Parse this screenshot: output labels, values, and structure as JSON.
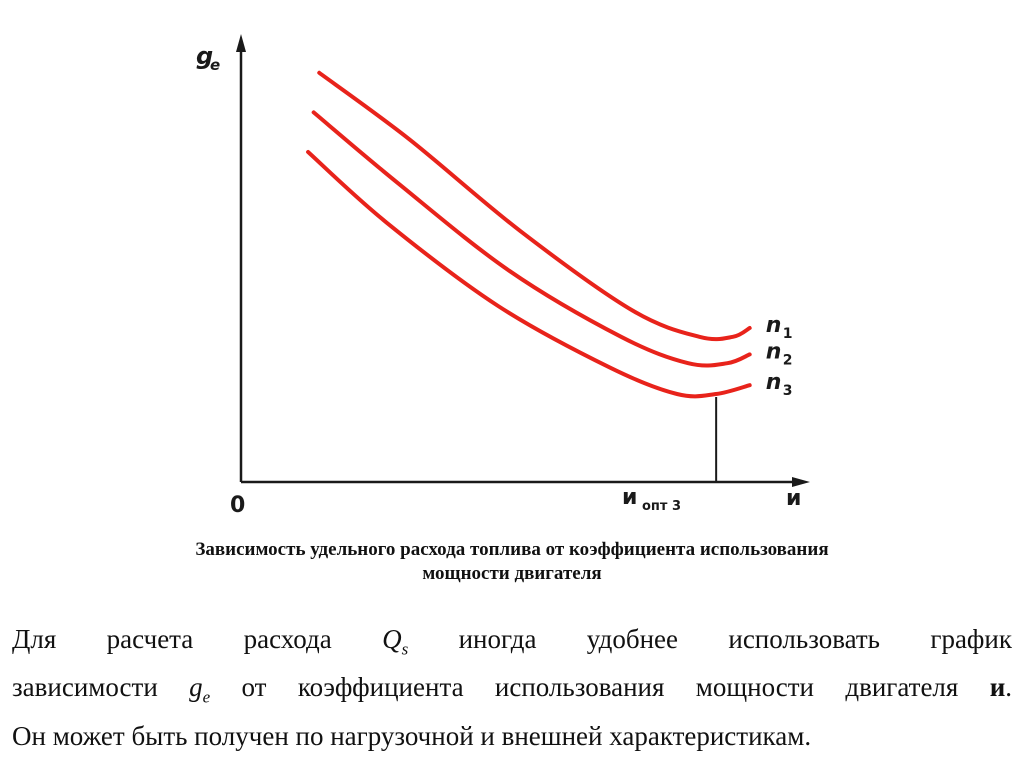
{
  "chart_data": {
    "type": "line",
    "y_axis_label": "g",
    "y_axis_label_sub": "e",
    "x_axis_label": "и",
    "origin_label": "0",
    "x_marker_label": "и",
    "x_marker_label_sub": "опт 3",
    "series": [
      {
        "name": "n1",
        "label_main": "n",
        "label_sub": "1",
        "x": [
          0.14,
          0.3,
          0.5,
          0.7,
          0.82,
          0.88,
          0.91
        ],
        "y": [
          0.93,
          0.78,
          0.57,
          0.39,
          0.33,
          0.33,
          0.35
        ]
      },
      {
        "name": "n2",
        "label_main": "n",
        "label_sub": "2",
        "x": [
          0.13,
          0.28,
          0.48,
          0.68,
          0.8,
          0.87,
          0.91
        ],
        "y": [
          0.84,
          0.68,
          0.48,
          0.33,
          0.27,
          0.27,
          0.29
        ]
      },
      {
        "name": "n3",
        "label_main": "n",
        "label_sub": "3",
        "x": [
          0.12,
          0.26,
          0.46,
          0.66,
          0.78,
          0.85,
          0.91
        ],
        "y": [
          0.75,
          0.59,
          0.4,
          0.26,
          0.2,
          0.2,
          0.22
        ]
      }
    ],
    "marker_x": 0.85,
    "marker_y": 0.2,
    "grid": false,
    "line_color": "#e8231b"
  },
  "caption": {
    "line1": "Зависимость удельного расхода топлива от коэффициента использования",
    "line2": "мощности двигателя"
  },
  "body": {
    "line1_a": "Для расчета расхода ",
    "Qs_main": "Q",
    "Qs_sub": "s",
    "line1_b": " иногда удобнее использовать график",
    "line2_a": "зависимости ",
    "ge_main": "g",
    "ge_sub": "e",
    "line2_b": " от коэффициента использования мощности двигателя ",
    "line2_bold": "и",
    "line2_c": ".",
    "line3": "Он может быть получен по нагрузочной и внешней характеристикам."
  }
}
